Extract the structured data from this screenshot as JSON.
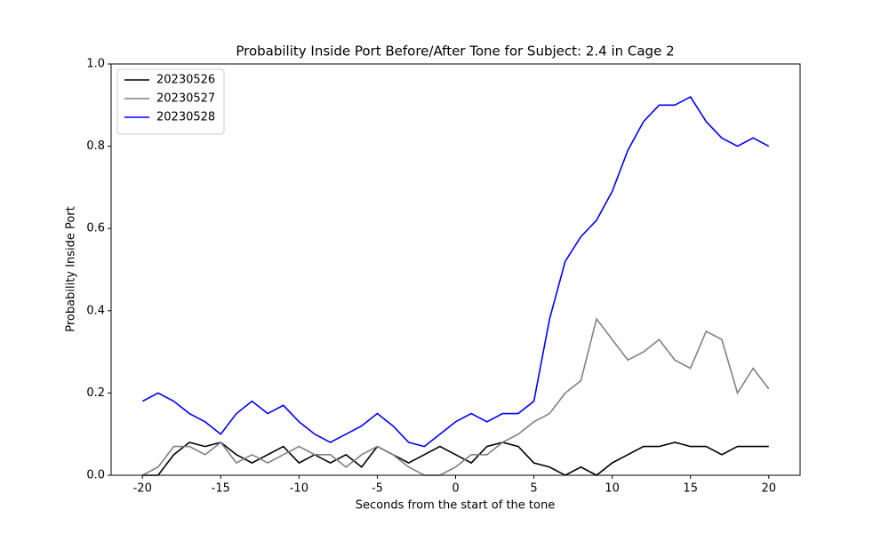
{
  "chart_data": {
    "type": "line",
    "title": "Probability Inside Port Before/After Tone for Subject: 2.4 in Cage 2",
    "x_label": "Seconds from the start of the tone",
    "y_label": "Probability Inside Port",
    "x": [
      -20,
      -19,
      -18,
      -17,
      -16,
      -15,
      -14,
      -13,
      -12,
      -11,
      -10,
      -9,
      -8,
      -7,
      -6,
      -5,
      -4,
      -3,
      -2,
      -1,
      0,
      1,
      2,
      3,
      4,
      5,
      6,
      7,
      8,
      9,
      10,
      11,
      12,
      13,
      14,
      15,
      16,
      17,
      18,
      19,
      20
    ],
    "series": [
      {
        "name": "20230526",
        "color": "#000000",
        "values": [
          0,
          0,
          0.05,
          0.08,
          0.07,
          0.08,
          0.05,
          0.03,
          0.05,
          0.07,
          0.03,
          0.05,
          0.03,
          0.05,
          0.02,
          0.07,
          0.05,
          0.03,
          0.05,
          0.07,
          0.05,
          0.03,
          0.07,
          0.08,
          0.07,
          0.03,
          0.02,
          0,
          0.02,
          0,
          0.03,
          0.05,
          0.07,
          0.07,
          0.08,
          0.07,
          0.07,
          0.05,
          0.07,
          0.07,
          0.07
        ]
      },
      {
        "name": "20230527",
        "color": "#808080",
        "values": [
          0,
          0.02,
          0.07,
          0.07,
          0.05,
          0.08,
          0.03,
          0.05,
          0.03,
          0.05,
          0.07,
          0.05,
          0.05,
          0.02,
          0.05,
          0.07,
          0.05,
          0.02,
          0,
          0,
          0.02,
          0.05,
          0.05,
          0.08,
          0.1,
          0.13,
          0.15,
          0.2,
          0.23,
          0.38,
          0.33,
          0.28,
          0.3,
          0.33,
          0.28,
          0.26,
          0.35,
          0.33,
          0.2,
          0.26,
          0.21
        ]
      },
      {
        "name": "20230528",
        "color": "#0000ff",
        "values": [
          0.18,
          0.2,
          0.18,
          0.15,
          0.13,
          0.1,
          0.15,
          0.18,
          0.15,
          0.17,
          0.13,
          0.1,
          0.08,
          0.1,
          0.12,
          0.15,
          0.12,
          0.08,
          0.07,
          0.1,
          0.13,
          0.15,
          0.13,
          0.15,
          0.15,
          0.18,
          0.38,
          0.52,
          0.58,
          0.62,
          0.69,
          0.79,
          0.86,
          0.9,
          0.9,
          0.92,
          0.86,
          0.82,
          0.8,
          0.82,
          0.8
        ]
      }
    ],
    "xlim": [
      -22,
      22
    ],
    "ylim": [
      0,
      1
    ],
    "xticks": [
      -20,
      -15,
      -10,
      -5,
      0,
      5,
      10,
      15,
      20
    ],
    "yticks": [
      {
        "value": 0,
        "label": "0.0"
      },
      0.2,
      0.4,
      0.6,
      0.8,
      {
        "value": 1,
        "label": "1.0"
      }
    ],
    "legend": "upper left"
  }
}
